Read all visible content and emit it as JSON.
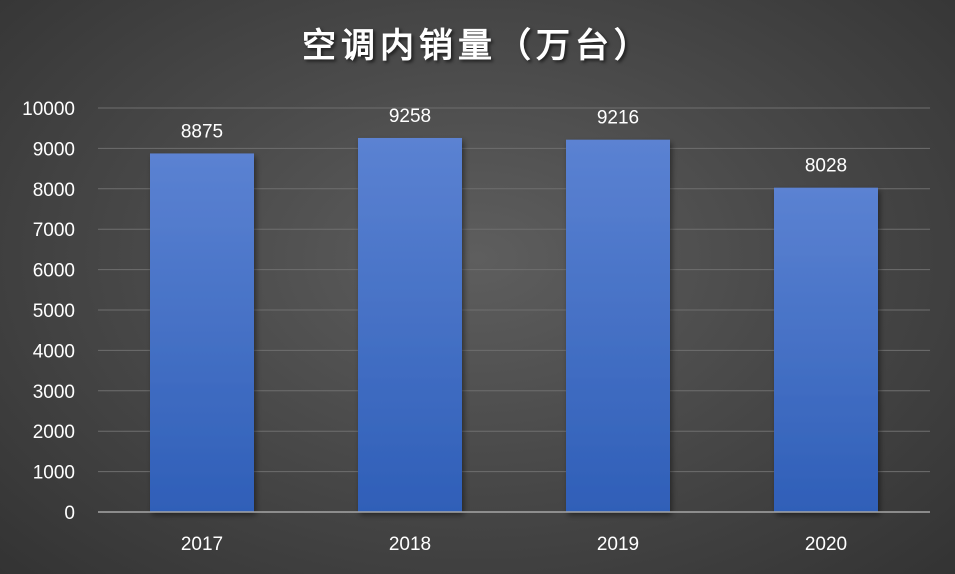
{
  "chart_data": {
    "type": "bar",
    "title": "空调内销量（万台）",
    "categories": [
      "2017",
      "2018",
      "2019",
      "2020"
    ],
    "values": [
      8875,
      9258,
      9216,
      8028
    ],
    "data_labels": [
      "8875",
      "9258",
      "9216",
      "8028"
    ],
    "y_ticks": [
      "0",
      "1000",
      "2000",
      "3000",
      "4000",
      "5000",
      "6000",
      "7000",
      "8000",
      "9000",
      "10000"
    ],
    "ylim": [
      0,
      10000
    ],
    "xlabel": "",
    "ylabel": "",
    "grid": true,
    "legend": "none",
    "colors": {
      "bar_top": "#5b82d2",
      "bar_bottom": "#2f5fb8",
      "gridline": "#6e6e6e",
      "axis_line": "#a6a6a6"
    }
  }
}
